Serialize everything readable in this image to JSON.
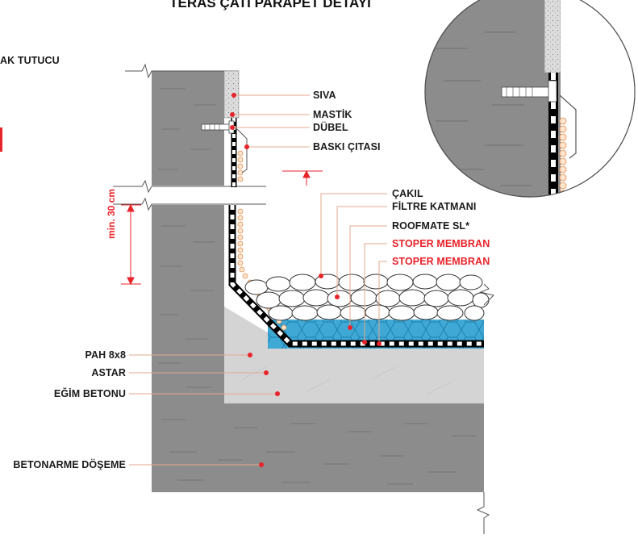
{
  "title": "TERAS ÇATI PARAPET DETAYI",
  "left_cut_label": "AK TUTUCU",
  "dimension_label": "min. 30 cm",
  "labels_right": [
    {
      "text": "SIVA",
      "color": "#1a1a1a"
    },
    {
      "text": "MASTİK",
      "color": "#1a1a1a"
    },
    {
      "text": "DÜBEL",
      "color": "#1a1a1a"
    },
    {
      "text": "BASKI ÇITASI",
      "color": "#1a1a1a"
    },
    {
      "text": "ÇAKIL",
      "color": "#1a1a1a"
    },
    {
      "text": "FİLTRE KATMANI",
      "color": "#1a1a1a"
    },
    {
      "text": "ROOFMATE SL*",
      "color": "#1a1a1a"
    },
    {
      "text": "STOPER MEMBRAN",
      "color": "#e8232a"
    },
    {
      "text": "STOPER MEMBRAN",
      "color": "#e8232a"
    }
  ],
  "labels_left": [
    {
      "text": "PAH 8x8"
    },
    {
      "text": "ASTAR"
    },
    {
      "text": "EĞİM BETONU"
    },
    {
      "text": "BETONARME DÖŞEME"
    }
  ],
  "colors": {
    "concrete": "#8c8c8c",
    "slope_concrete": "#d4d4d4",
    "insulation": "#3fa8d4",
    "leader_line": "#e3a98f",
    "marker": "#e8232a",
    "label": "#1a1a1a",
    "accent_red": "#e8232a"
  }
}
